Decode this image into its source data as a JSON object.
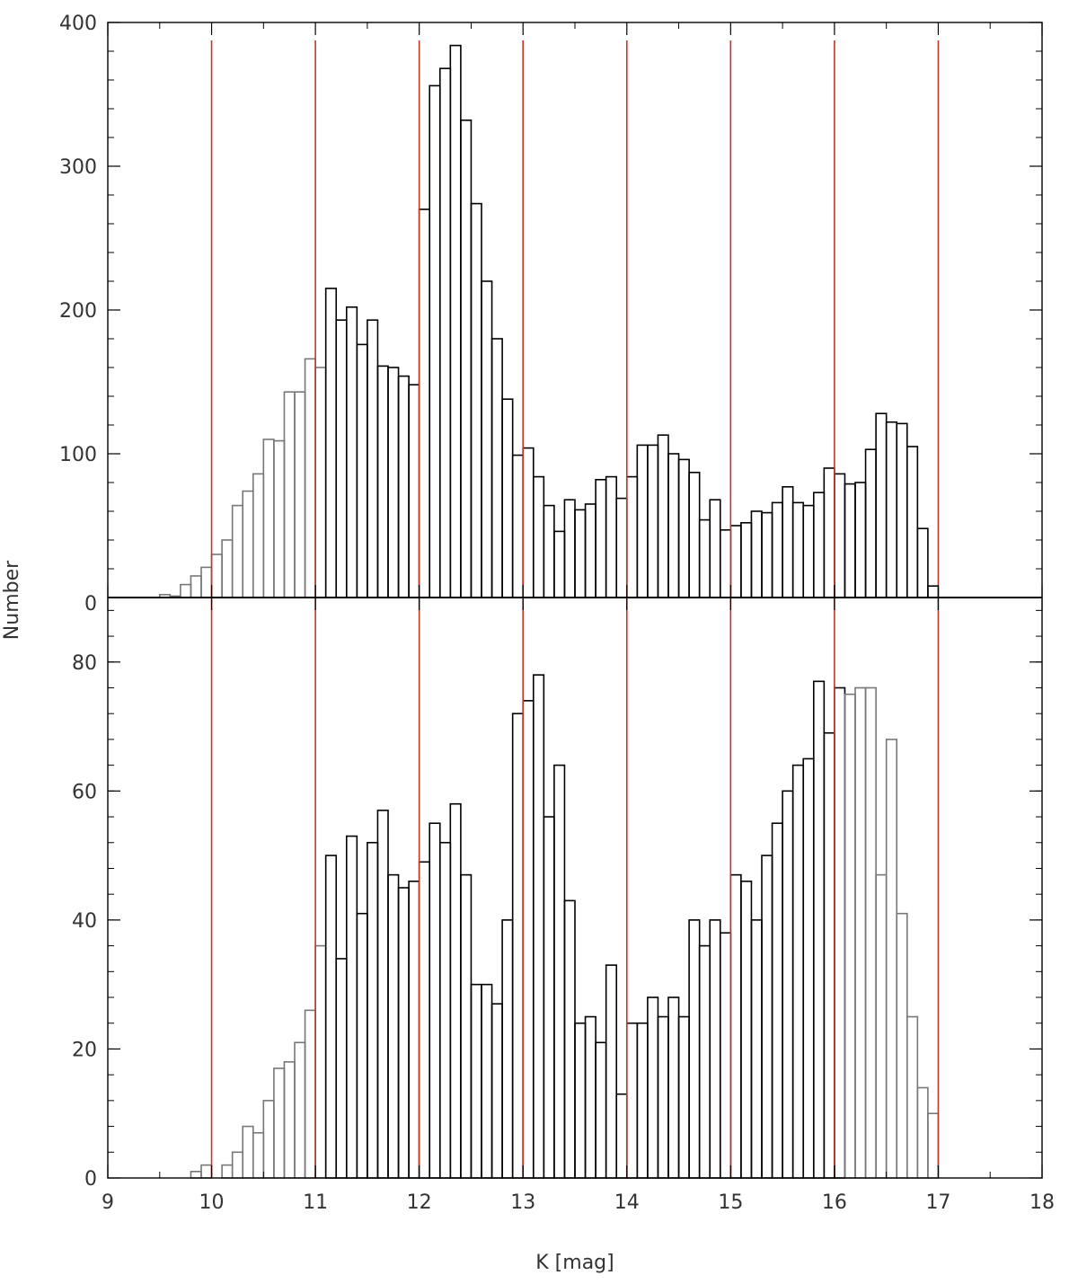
{
  "chart_data": {
    "type": "bar",
    "xlabel": "K [mag]",
    "ylabel": "Number",
    "xlim": [
      9,
      18
    ],
    "x_ticks": [
      "9",
      "10",
      "11",
      "12",
      "13",
      "14",
      "15",
      "16",
      "17",
      "18"
    ],
    "bin_start": 9.5,
    "bin_width": 0.1,
    "reference_lines_x": [
      10,
      11,
      12,
      13,
      14,
      15,
      16,
      17
    ],
    "colors": {
      "bars": "#000000",
      "bars_alt": "#777777",
      "reference_lines": "#c0392b"
    },
    "panels": [
      {
        "name": "top",
        "ylim": [
          0,
          400
        ],
        "y_ticks": [
          "0",
          "100",
          "200",
          "300",
          "400"
        ],
        "values": [
          2,
          1,
          9,
          15,
          21,
          30,
          40,
          64,
          74,
          86,
          110,
          109,
          143,
          143,
          166,
          160,
          215,
          193,
          202,
          176,
          193,
          161,
          160,
          154,
          148,
          270,
          356,
          368,
          384,
          332,
          274,
          220,
          180,
          138,
          99,
          104,
          84,
          64,
          46,
          68,
          61,
          65,
          82,
          84,
          69,
          84,
          106,
          106,
          113,
          100,
          96,
          87,
          54,
          68,
          47,
          50,
          52,
          60,
          59,
          66,
          77,
          66,
          64,
          73,
          90,
          86,
          79,
          80,
          103,
          128,
          122,
          121,
          105,
          48,
          8
        ]
      },
      {
        "name": "bottom",
        "ylim": [
          0,
          90
        ],
        "y_ticks": [
          "0",
          "20",
          "40",
          "60",
          "80"
        ],
        "values": [
          0,
          0,
          0,
          1,
          2,
          0,
          2,
          4,
          8,
          7,
          12,
          17,
          18,
          21,
          26,
          36,
          50,
          34,
          53,
          41,
          52,
          57,
          47,
          45,
          46,
          49,
          55,
          52,
          58,
          47,
          30,
          30,
          27,
          40,
          72,
          74,
          78,
          56,
          64,
          43,
          24,
          25,
          21,
          33,
          13,
          24,
          24,
          28,
          25,
          28,
          25,
          40,
          36,
          40,
          38,
          47,
          46,
          40,
          50,
          55,
          60,
          64,
          65,
          77,
          69,
          76,
          75,
          76,
          76,
          47,
          68,
          41,
          25,
          14,
          10
        ]
      }
    ]
  }
}
